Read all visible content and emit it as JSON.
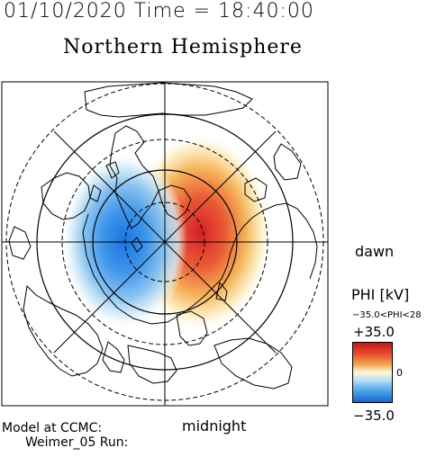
{
  "header": {
    "timestamp": "01/10/2020 Time = 18:40:00",
    "title": "Northern Hemisphere"
  },
  "map": {
    "dawn_label": "dawn",
    "midnight_label": "midnight",
    "colors": {
      "positive": "#d9262a",
      "negative": "#1f7be0",
      "neutral": "#ffffff",
      "lines": "#000000"
    }
  },
  "colorbar": {
    "title": "PHI [kV]",
    "range_text": "−35.0<PHI<28",
    "max_label": "+35.0",
    "zero_label": "0",
    "min_label": "−35.0"
  },
  "footer": {
    "model_line": "Model at CCMC:",
    "run_line": "Weimer_05 Run:"
  }
}
